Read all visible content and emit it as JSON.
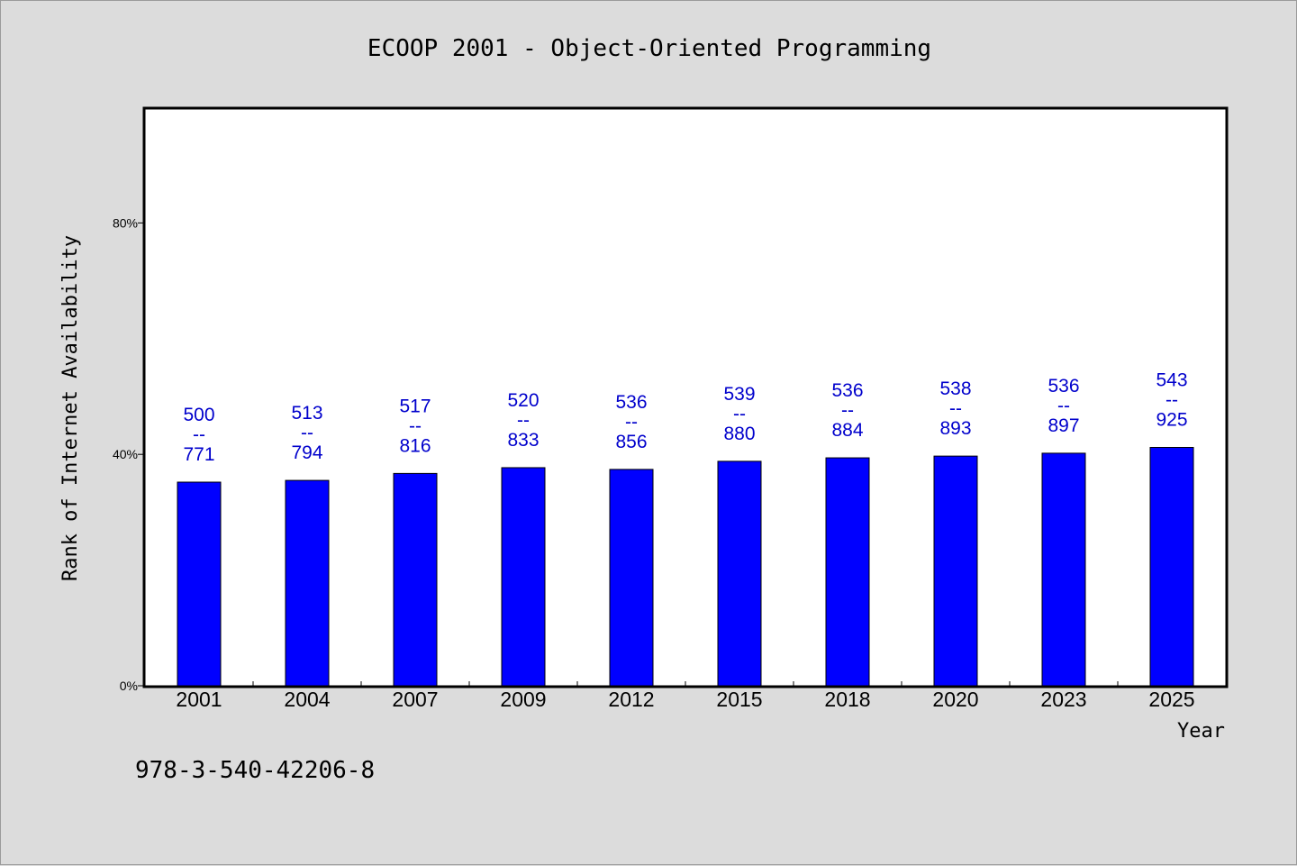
{
  "chart_data": {
    "type": "bar",
    "title": "ECOOP 2001 - Object-Oriented Programming",
    "xlabel": "Year",
    "ylabel": "Rank of Internet Availability",
    "categories": [
      "2001",
      "2004",
      "2007",
      "2009",
      "2012",
      "2015",
      "2018",
      "2020",
      "2023",
      "2025"
    ],
    "series": [
      {
        "values": [
          35.2,
          35.5,
          36.7,
          37.7,
          37.4,
          38.8,
          39.4,
          39.7,
          40.2,
          41.2
        ],
        "labels_top": [
          "500",
          "513",
          "517",
          "520",
          "536",
          "539",
          "536",
          "538",
          "536",
          "543"
        ],
        "labels_bottom": [
          "771",
          "794",
          "816",
          "833",
          "856",
          "880",
          "884",
          "893",
          "897",
          "925"
        ]
      }
    ],
    "label_separator": "--",
    "ylim": [
      0,
      100
    ],
    "yticks": [
      0,
      40,
      80
    ],
    "ytick_labels": [
      "0%",
      "40%",
      "80%"
    ],
    "grid": false,
    "bar_color": "#0000ff",
    "label_color": "#0000cc",
    "plot_background": "#ffffff",
    "page_background": "#dcdcdc"
  },
  "footer": {
    "isbn": "978-3-540-42206-8"
  }
}
